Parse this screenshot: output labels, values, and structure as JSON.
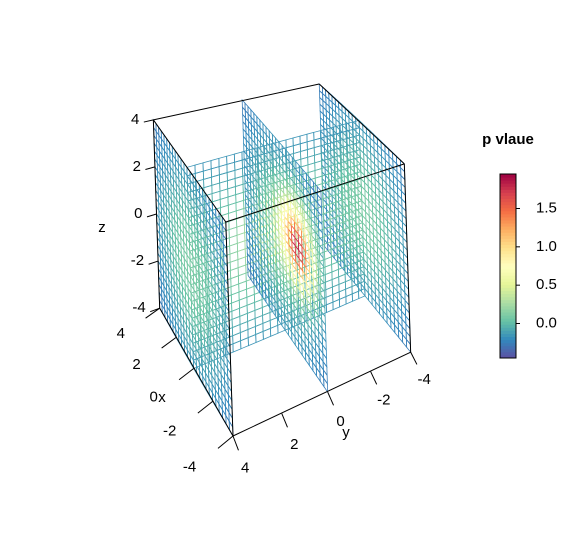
{
  "chart_data": {
    "type": "slice3d",
    "xlabel": "x",
    "ylabel": "y",
    "zlabel": "z",
    "xlim": [
      -4,
      4
    ],
    "ylim": [
      -4,
      4
    ],
    "zlim": [
      -4,
      4
    ],
    "xticks": [
      -4,
      -2,
      0,
      2,
      4
    ],
    "yticks": [
      -4,
      -2,
      0,
      2,
      4
    ],
    "zticks": [
      -4,
      -2,
      0,
      2,
      4
    ],
    "slices": {
      "x": [
        0
      ],
      "y": [
        -4,
        0,
        4
      ]
    },
    "colorbar": {
      "title": "p vlaue",
      "lim": [
        -0.45,
        1.95
      ],
      "ticks": [
        {
          "value": 0,
          "label": "0.0"
        },
        0.5,
        {
          "value": 1,
          "label": "1.0"
        },
        1.5
      ]
    },
    "colors": [
      "#5E4FA2",
      "#3288BD",
      "#66C2A5",
      "#ABDDA4",
      "#E6F598",
      "#FFFFBF",
      "#FEE08B",
      "#FDAE61",
      "#F46D43",
      "#D53E4F",
      "#9E0142"
    ]
  }
}
